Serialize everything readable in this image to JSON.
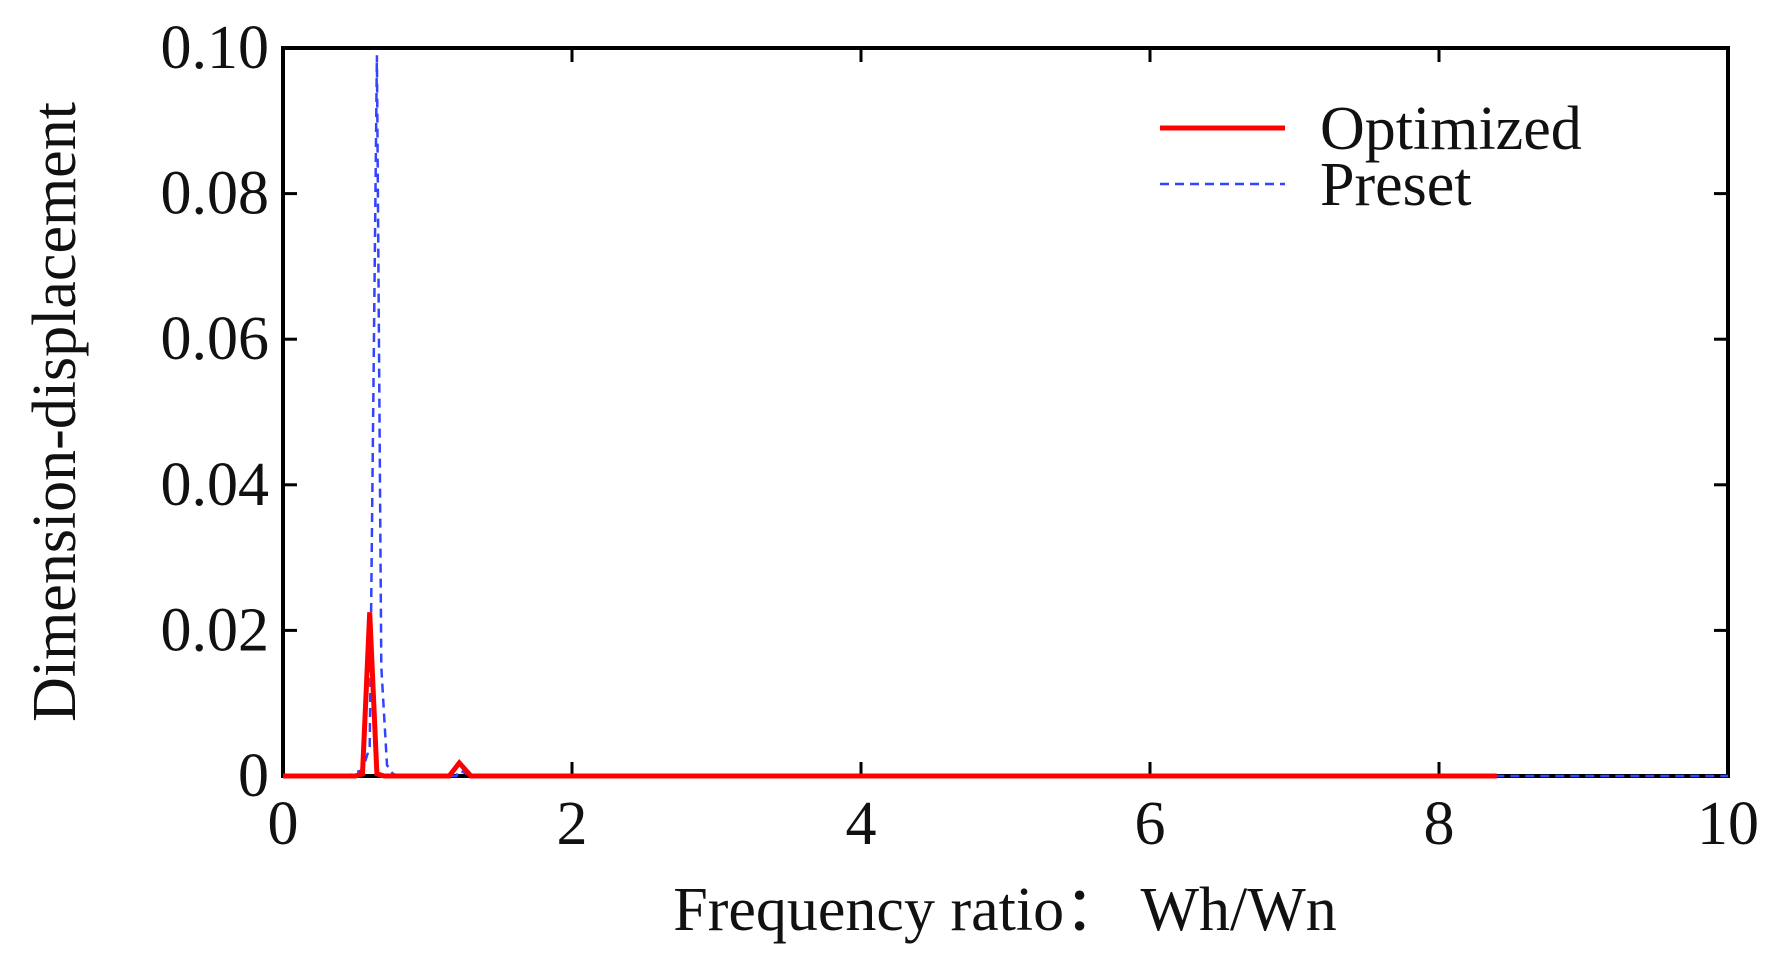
{
  "chart_data": {
    "type": "line",
    "xlabel": "Frequency ratio：  Wh/Wn",
    "ylabel": "Dimension-displacement",
    "xlim": [
      0,
      10
    ],
    "ylim": [
      0,
      0.1
    ],
    "xticks": [
      0,
      2,
      4,
      6,
      8,
      10
    ],
    "xtick_labels": [
      "0",
      "2",
      "4",
      "6",
      "8",
      "10"
    ],
    "yticks": [
      0,
      0.02,
      0.04,
      0.06,
      0.08,
      0.1
    ],
    "ytick_labels": [
      "0",
      "0.02",
      "0.04",
      "0.06",
      "0.08",
      "0.10"
    ],
    "grid": false,
    "legend_position": "top-right",
    "series": [
      {
        "name": "Optimized",
        "color": "#ff0000",
        "style": "solid",
        "x": [
          0,
          0.5,
          0.55,
          0.6,
          0.65,
          0.7,
          0.75,
          1.15,
          1.22,
          1.3,
          1.5,
          8.4
        ],
        "y": [
          0,
          0,
          0.0003,
          0.0225,
          0.0003,
          0,
          0,
          0,
          0.0018,
          0,
          0,
          0
        ]
      },
      {
        "name": "Preset",
        "color": "#3344ff",
        "style": "dashed",
        "x": [
          0,
          0.45,
          0.5,
          0.55,
          0.6,
          0.65,
          0.68,
          0.72,
          0.76,
          0.8,
          1.2,
          1.22,
          1.3,
          1.5,
          10
        ],
        "y": [
          0,
          0,
          0.0005,
          0.0008,
          0.004,
          0.099,
          0.015,
          0.0015,
          0.0003,
          0,
          0,
          0.0008,
          0,
          0,
          0
        ]
      }
    ]
  }
}
